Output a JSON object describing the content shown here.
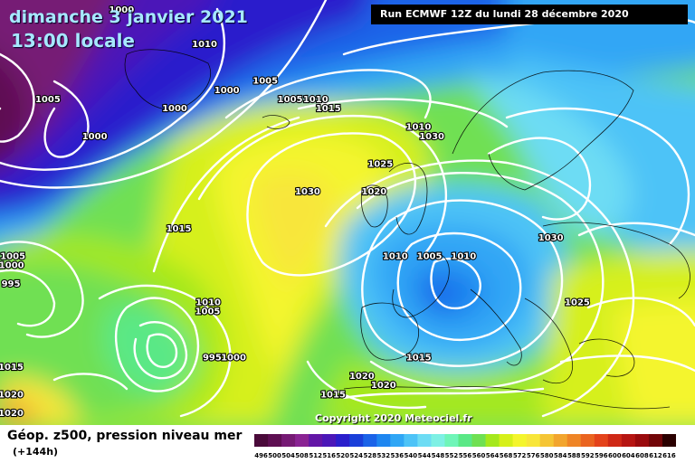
{
  "title": {
    "date": "dimanche 3 janvier 2021",
    "time": "13:00 locale"
  },
  "run_info": "Run ECMWF 12Z du lundi 28 décembre 2020",
  "copyright": "Copyright 2020 Meteociel.fr",
  "legend": {
    "title": "Géop. z500, pression niveau mer",
    "subtitle": "(+144h)",
    "values": [
      "496",
      "500",
      "504",
      "508",
      "512",
      "516",
      "520",
      "524",
      "528",
      "532",
      "536",
      "540",
      "544",
      "548",
      "552",
      "556",
      "560",
      "564",
      "568",
      "572",
      "576",
      "580",
      "584",
      "588",
      "592",
      "596",
      "600",
      "604",
      "608",
      "612",
      "616"
    ],
    "colors": [
      "#4a0a3a",
      "#5e0f52",
      "#761a74",
      "#8a2393",
      "#6316a6",
      "#4b17b8",
      "#2a1fcc",
      "#1a3fd9",
      "#1b63e8",
      "#1e86f0",
      "#30a6f5",
      "#4dc3f7",
      "#6ddcf4",
      "#7ef0e4",
      "#6ff5b8",
      "#5ae886",
      "#6fe052",
      "#a5e81c",
      "#d6f01a",
      "#f4f52d",
      "#f8e63a",
      "#f5c535",
      "#f2a52e",
      "#ef8526",
      "#ea6420",
      "#e4431b",
      "#cf2816",
      "#b61512",
      "#9a0a0d",
      "#720608",
      "#2a0000"
    ]
  },
  "pressure_labels": [
    {
      "text": "1000",
      "lon": -32,
      "lat": 72
    },
    {
      "text": "1010",
      "lon": -18,
      "lat": 68
    },
    {
      "text": "1005",
      "lon": -42,
      "lat": 62
    },
    {
      "text": "1005",
      "lon": -8,
      "lat": 64
    },
    {
      "text": "1005",
      "lon": -4,
      "lat": 62
    },
    {
      "text": "1000",
      "lon": -14,
      "lat": 63
    },
    {
      "text": "1000",
      "lon": -22,
      "lat": 61
    },
    {
      "text": "1000",
      "lon": -34,
      "lat": 58
    },
    {
      "text": "1010",
      "lon": 0,
      "lat": 62
    },
    {
      "text": "1015",
      "lon": 2,
      "lat": 61
    },
    {
      "text": "1010",
      "lon": 16,
      "lat": 59
    },
    {
      "text": "1030",
      "lon": 18,
      "lat": 58
    },
    {
      "text": "1025",
      "lon": 10,
      "lat": 55
    },
    {
      "text": "1020",
      "lon": 9,
      "lat": 52
    },
    {
      "text": "1030",
      "lon": -1,
      "lat": 52
    },
    {
      "text": "1015",
      "lon": -20,
      "lat": 48
    },
    {
      "text": "1005",
      "lon": -44,
      "lat": 45
    },
    {
      "text": "1000",
      "lon": -44,
      "lat": 44
    },
    {
      "text": "995",
      "lon": -48,
      "lat": 42
    },
    {
      "text": "1030",
      "lon": 35,
      "lat": 47
    },
    {
      "text": "1010",
      "lon": 12,
      "lat": 45
    },
    {
      "text": "1005",
      "lon": 17,
      "lat": 45
    },
    {
      "text": "1010",
      "lon": 22,
      "lat": 45
    },
    {
      "text": "1010",
      "lon": -15,
      "lat": 40
    },
    {
      "text": "1005",
      "lon": -15,
      "lat": 39
    },
    {
      "text": "1025",
      "lon": 38,
      "lat": 40
    },
    {
      "text": "995",
      "lon": -14,
      "lat": 34
    },
    {
      "text": "1000",
      "lon": -11,
      "lat": 34
    },
    {
      "text": "1015",
      "lon": -44,
      "lat": 33
    },
    {
      "text": "1015",
      "lon": 15,
      "lat": 34
    },
    {
      "text": "1020",
      "lon": 7,
      "lat": 32
    },
    {
      "text": "1020",
      "lon": 10,
      "lat": 31
    },
    {
      "text": "1015",
      "lon": 3,
      "lat": 30
    },
    {
      "text": "1020",
      "lon": -48,
      "lat": 30
    },
    {
      "text": "1020",
      "lon": -45,
      "lat": 28
    }
  ]
}
